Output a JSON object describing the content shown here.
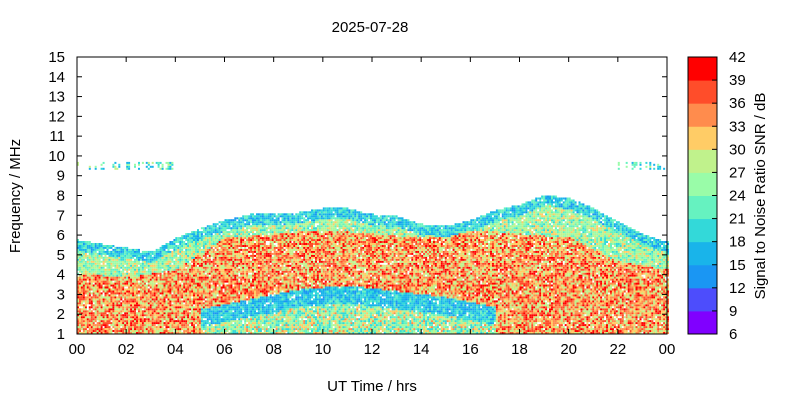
{
  "chart_data": {
    "type": "heatmap",
    "title": "2025-07-28",
    "xlabel": "UT Time / hrs",
    "ylabel": "Frequency / MHz",
    "colorbar_label": "Signal to Noise Ratio SNR / dB",
    "x_range": [
      0,
      24
    ],
    "y_range": [
      1,
      15
    ],
    "x_ticks": [
      "00",
      "02",
      "04",
      "06",
      "08",
      "10",
      "12",
      "14",
      "16",
      "18",
      "20",
      "22",
      "00"
    ],
    "y_ticks": [
      "1",
      "2",
      "3",
      "4",
      "5",
      "6",
      "7",
      "8",
      "9",
      "10",
      "11",
      "12",
      "13",
      "14",
      "15"
    ],
    "colorbar_range": [
      6,
      42
    ],
    "colorbar_ticks": [
      "6",
      "9",
      "12",
      "15",
      "18",
      "21",
      "24",
      "27",
      "30",
      "33",
      "36",
      "39",
      "42"
    ],
    "colorbar_colors": [
      "#8000ff",
      "#4d4dfc",
      "#1a96f3",
      "#19b4ea",
      "#33d9d9",
      "#66f2c0",
      "#99fca8",
      "#c0f28c",
      "#ffcc66",
      "#ff8c4d",
      "#ff4d2a",
      "#ff0000"
    ],
    "grid": false,
    "upper_envelope": {
      "x": [
        0,
        1,
        2,
        3,
        4,
        5,
        6,
        7,
        8,
        9,
        10,
        11,
        12,
        13,
        14,
        15,
        16,
        17,
        18,
        19,
        20,
        21,
        22,
        23,
        24
      ],
      "y": [
        5.7,
        5.5,
        5.3,
        5.1,
        5.8,
        6.3,
        6.7,
        7.0,
        7.0,
        7.1,
        7.3,
        7.3,
        7.0,
        6.9,
        6.5,
        6.4,
        6.7,
        7.2,
        7.5,
        8.0,
        7.8,
        7.3,
        6.6,
        6.0,
        5.6
      ]
    },
    "core_envelope": {
      "x": [
        0,
        2,
        4,
        5,
        6,
        8,
        10,
        12,
        14,
        16,
        18,
        20,
        22,
        24
      ],
      "y": [
        4.0,
        3.8,
        4.2,
        5.0,
        5.8,
        6.0,
        6.2,
        6.0,
        5.8,
        6.2,
        6.0,
        5.8,
        4.6,
        4.2
      ]
    },
    "low_snr_dip": {
      "x": [
        5,
        7,
        9,
        11,
        13,
        15,
        17
      ],
      "y": [
        2.2,
        2.7,
        3.2,
        3.4,
        3.1,
        2.8,
        2.3
      ]
    },
    "sporadic_band": {
      "y_center": 9.5,
      "x_ranges": [
        [
          0,
          4
        ],
        [
          22,
          24
        ]
      ]
    }
  }
}
